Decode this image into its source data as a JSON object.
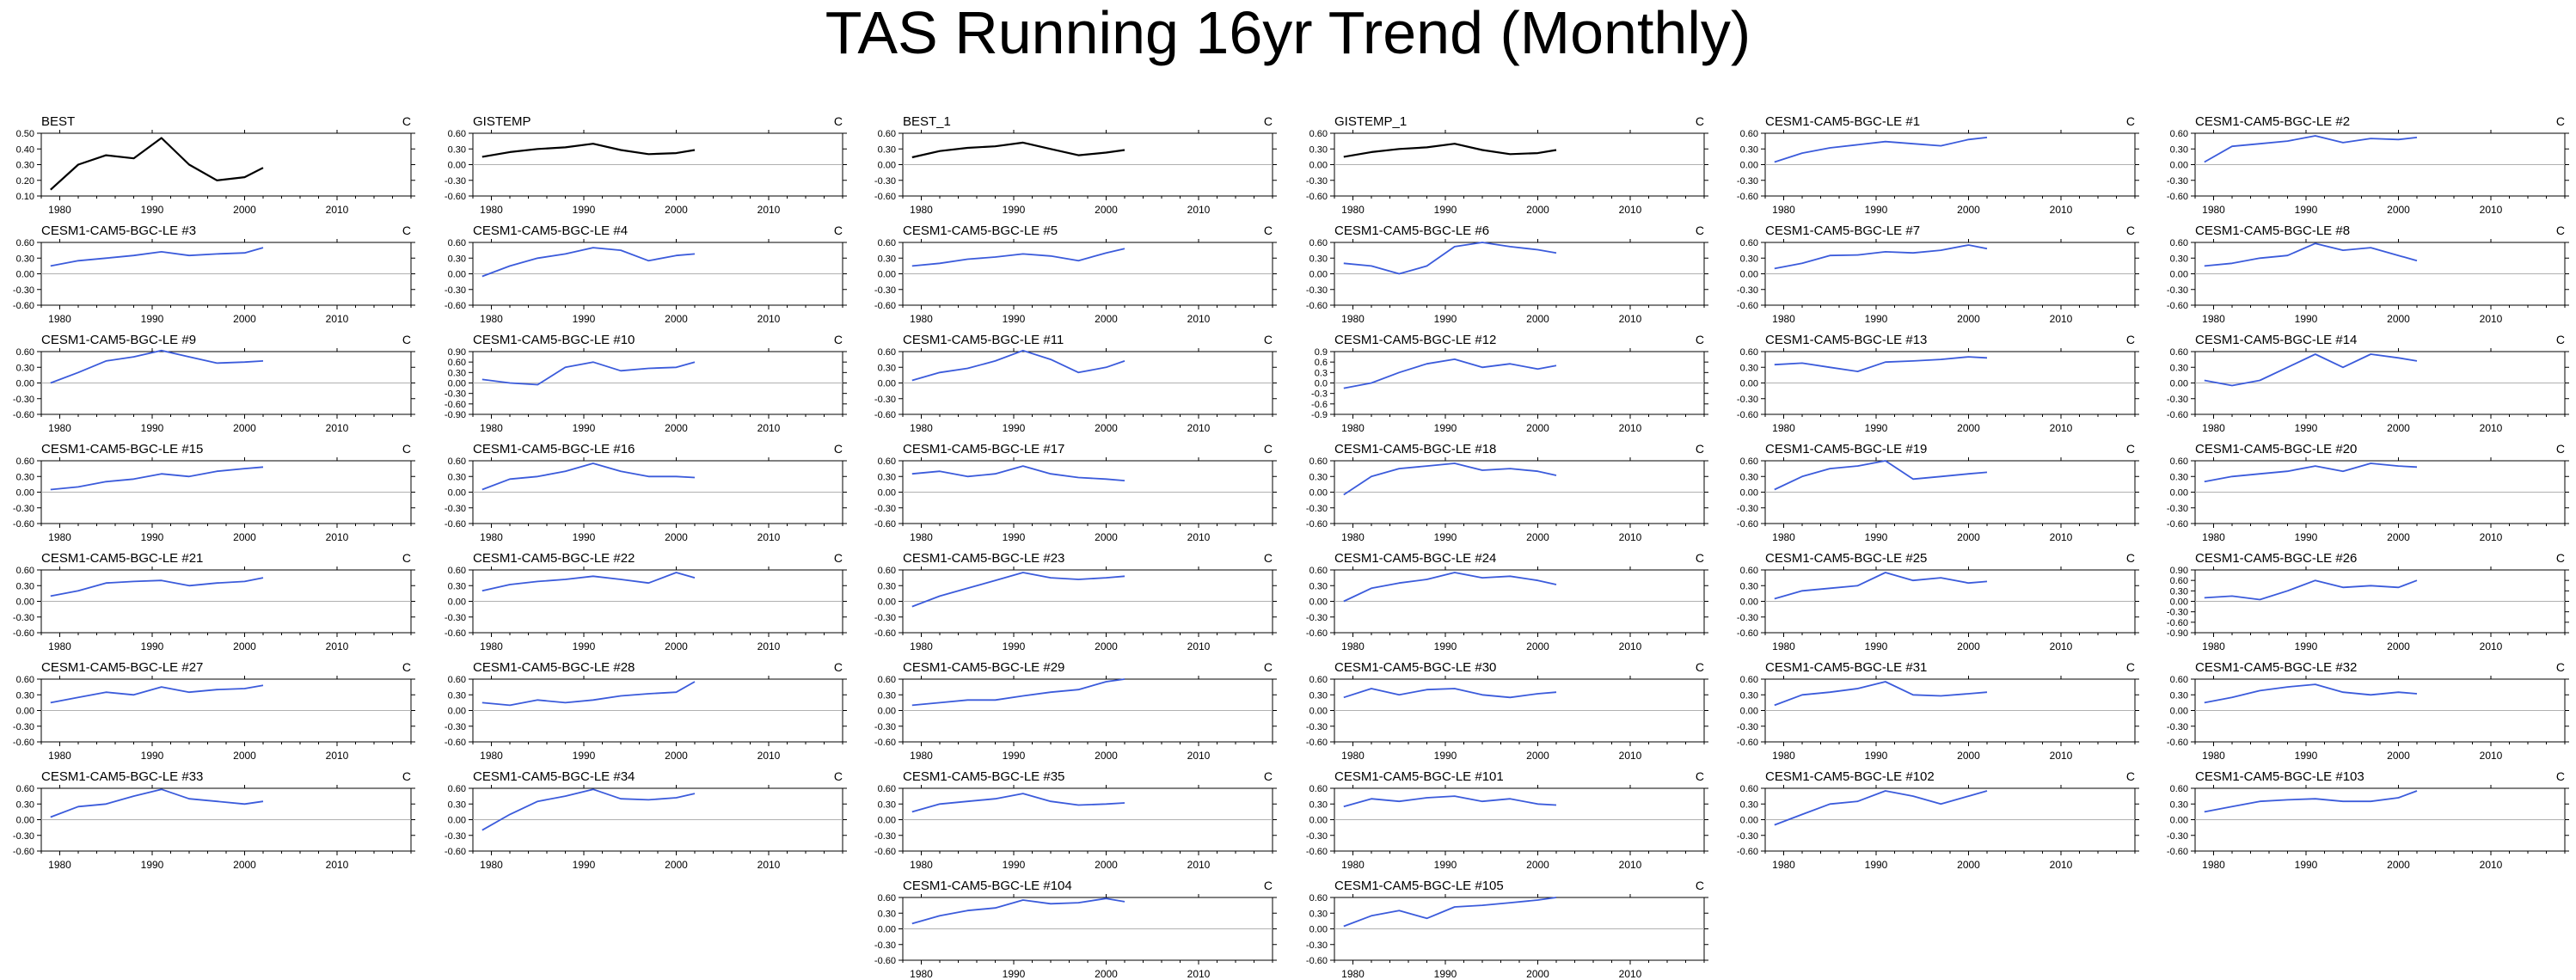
{
  "title": "TAS Running 16yr Trend (Monthly)",
  "colors": {
    "obs": "#000000",
    "model": "#3b5bdb",
    "zero": "#b0b0b0",
    "axis": "#000000"
  },
  "chart_data": {
    "type": "line",
    "units": "C",
    "x_tick_labels": [
      "1980",
      "1990",
      "2000",
      "2010"
    ],
    "xlim": [
      1978,
      2018
    ],
    "x": [
      1979,
      1982,
      1985,
      1988,
      1991,
      1994,
      1997,
      2000,
      2002
    ],
    "panels": [
      {
        "label": "BEST",
        "ylim": [
          0.1,
          0.5
        ],
        "yticks": [
          "0.50",
          "0.40",
          "0.30",
          "0.20",
          "0.10"
        ],
        "y": [
          0.14,
          0.3,
          0.36,
          0.34,
          0.47,
          0.3,
          0.2,
          0.22,
          0.28
        ],
        "obs": true
      },
      {
        "label": "GISTEMP",
        "ylim": [
          -0.6,
          0.6
        ],
        "yticks": [
          "0.60",
          "0.30",
          "0.00",
          "-0.30",
          "-0.60"
        ],
        "y": [
          0.15,
          0.24,
          0.3,
          0.33,
          0.4,
          0.28,
          0.2,
          0.22,
          0.28
        ],
        "obs": true
      },
      {
        "label": "BEST_1",
        "ylim": [
          -0.6,
          0.6
        ],
        "yticks": [
          "0.60",
          "0.30",
          "0.00",
          "-0.30",
          "-0.60"
        ],
        "y": [
          0.14,
          0.26,
          0.32,
          0.35,
          0.42,
          0.3,
          0.18,
          0.23,
          0.28
        ],
        "obs": true
      },
      {
        "label": "GISTEMP_1",
        "ylim": [
          -0.6,
          0.6
        ],
        "yticks": [
          "0.60",
          "0.30",
          "0.00",
          "-0.30",
          "-0.60"
        ],
        "y": [
          0.15,
          0.24,
          0.3,
          0.33,
          0.4,
          0.28,
          0.2,
          0.22,
          0.28
        ],
        "obs": true
      },
      {
        "label": "CESM1-CAM5-BGC-LE #1",
        "ylim": [
          -0.6,
          0.6
        ],
        "yticks": [
          "0.60",
          "0.30",
          "0.00",
          "-0.30",
          "-0.60"
        ],
        "y": [
          0.05,
          0.22,
          0.32,
          0.38,
          0.44,
          0.4,
          0.36,
          0.48,
          0.52
        ]
      },
      {
        "label": "CESM1-CAM5-BGC-LE #2",
        "ylim": [
          -0.6,
          0.6
        ],
        "yticks": [
          "0.60",
          "0.30",
          "0.00",
          "-0.30",
          "-0.60"
        ],
        "y": [
          0.05,
          0.35,
          0.4,
          0.45,
          0.55,
          0.42,
          0.5,
          0.48,
          0.52
        ]
      },
      {
        "label": "CESM1-CAM5-BGC-LE #3",
        "ylim": [
          -0.6,
          0.6
        ],
        "yticks": [
          "0.60",
          "0.30",
          "0.00",
          "-0.30",
          "-0.60"
        ],
        "y": [
          0.15,
          0.25,
          0.3,
          0.35,
          0.42,
          0.35,
          0.38,
          0.4,
          0.5
        ]
      },
      {
        "label": "CESM1-CAM5-BGC-LE #4",
        "ylim": [
          -0.6,
          0.6
        ],
        "yticks": [
          "0.60",
          "0.30",
          "0.00",
          "-0.30",
          "-0.60"
        ],
        "y": [
          -0.05,
          0.15,
          0.3,
          0.38,
          0.5,
          0.45,
          0.25,
          0.35,
          0.38
        ]
      },
      {
        "label": "CESM1-CAM5-BGC-LE #5",
        "ylim": [
          -0.6,
          0.6
        ],
        "yticks": [
          "0.60",
          "0.30",
          "0.00",
          "-0.30",
          "-0.60"
        ],
        "y": [
          0.15,
          0.2,
          0.28,
          0.32,
          0.38,
          0.34,
          0.25,
          0.4,
          0.48
        ]
      },
      {
        "label": "CESM1-CAM5-BGC-LE #6",
        "ylim": [
          -0.6,
          0.6
        ],
        "yticks": [
          "0.60",
          "0.30",
          "0.00",
          "-0.30",
          "-0.60"
        ],
        "y": [
          0.2,
          0.15,
          0.0,
          0.15,
          0.52,
          0.6,
          0.52,
          0.46,
          0.4
        ]
      },
      {
        "label": "CESM1-CAM5-BGC-LE #7",
        "ylim": [
          -0.6,
          0.6
        ],
        "yticks": [
          "0.60",
          "0.30",
          "0.00",
          "-0.30",
          "-0.60"
        ],
        "y": [
          0.1,
          0.2,
          0.35,
          0.36,
          0.42,
          0.4,
          0.45,
          0.55,
          0.48
        ]
      },
      {
        "label": "CESM1-CAM5-BGC-LE #8",
        "ylim": [
          -0.6,
          0.6
        ],
        "yticks": [
          "0.60",
          "0.30",
          "0.00",
          "-0.30",
          "-0.60"
        ],
        "y": [
          0.15,
          0.2,
          0.3,
          0.35,
          0.58,
          0.45,
          0.5,
          0.35,
          0.25
        ]
      },
      {
        "label": "CESM1-CAM5-BGC-LE #9",
        "ylim": [
          -0.6,
          0.6
        ],
        "yticks": [
          "0.60",
          "0.30",
          "0.00",
          "-0.30",
          "-0.60"
        ],
        "y": [
          0.0,
          0.2,
          0.42,
          0.5,
          0.62,
          0.5,
          0.38,
          0.4,
          0.42
        ]
      },
      {
        "label": "CESM1-CAM5-BGC-LE #10",
        "ylim": [
          -0.9,
          0.9
        ],
        "yticks": [
          "0.90",
          "0.60",
          "0.30",
          "0.00",
          "-0.30",
          "-0.60",
          "-0.90"
        ],
        "y": [
          0.1,
          0.0,
          -0.05,
          0.45,
          0.6,
          0.35,
          0.42,
          0.45,
          0.6
        ]
      },
      {
        "label": "CESM1-CAM5-BGC-LE #11",
        "ylim": [
          -0.6,
          0.6
        ],
        "yticks": [
          "0.60",
          "0.30",
          "0.00",
          "-0.30",
          "-0.60"
        ],
        "y": [
          0.05,
          0.2,
          0.28,
          0.42,
          0.62,
          0.45,
          0.2,
          0.3,
          0.42
        ]
      },
      {
        "label": "CESM1-CAM5-BGC-LE #12",
        "ylim": [
          -0.9,
          0.9
        ],
        "yticks": [
          "0.9",
          "0.6",
          "0.3",
          "0.0",
          "-0.3",
          "-0.6",
          "-0.9"
        ],
        "y": [
          -0.15,
          0.0,
          0.3,
          0.55,
          0.68,
          0.45,
          0.55,
          0.4,
          0.5
        ]
      },
      {
        "label": "CESM1-CAM5-BGC-LE #13",
        "ylim": [
          -0.6,
          0.6
        ],
        "yticks": [
          "0.60",
          "0.30",
          "0.00",
          "-0.30",
          "-0.60"
        ],
        "y": [
          0.35,
          0.38,
          0.3,
          0.22,
          0.4,
          0.42,
          0.45,
          0.5,
          0.48
        ]
      },
      {
        "label": "CESM1-CAM5-BGC-LE #14",
        "ylim": [
          -0.6,
          0.6
        ],
        "yticks": [
          "0.60",
          "0.30",
          "0.00",
          "-0.30",
          "-0.60"
        ],
        "y": [
          0.05,
          -0.05,
          0.05,
          0.3,
          0.55,
          0.3,
          0.55,
          0.48,
          0.42
        ]
      },
      {
        "label": "CESM1-CAM5-BGC-LE #15",
        "ylim": [
          -0.6,
          0.6
        ],
        "yticks": [
          "0.60",
          "0.30",
          "0.00",
          "-0.30",
          "-0.60"
        ],
        "y": [
          0.05,
          0.1,
          0.2,
          0.25,
          0.35,
          0.3,
          0.4,
          0.45,
          0.48
        ]
      },
      {
        "label": "CESM1-CAM5-BGC-LE #16",
        "ylim": [
          -0.6,
          0.6
        ],
        "yticks": [
          "0.60",
          "0.30",
          "0.00",
          "-0.30",
          "-0.60"
        ],
        "y": [
          0.05,
          0.25,
          0.3,
          0.4,
          0.55,
          0.4,
          0.3,
          0.3,
          0.28
        ]
      },
      {
        "label": "CESM1-CAM5-BGC-LE #17",
        "ylim": [
          -0.6,
          0.6
        ],
        "yticks": [
          "0.60",
          "0.30",
          "0.00",
          "-0.30",
          "-0.60"
        ],
        "y": [
          0.35,
          0.4,
          0.3,
          0.35,
          0.5,
          0.35,
          0.28,
          0.25,
          0.22
        ]
      },
      {
        "label": "CESM1-CAM5-BGC-LE #18",
        "ylim": [
          -0.6,
          0.6
        ],
        "yticks": [
          "0.60",
          "0.30",
          "0.00",
          "-0.30",
          "-0.60"
        ],
        "y": [
          -0.05,
          0.3,
          0.45,
          0.5,
          0.55,
          0.42,
          0.45,
          0.4,
          0.32
        ]
      },
      {
        "label": "CESM1-CAM5-BGC-LE #19",
        "ylim": [
          -0.6,
          0.6
        ],
        "yticks": [
          "0.60",
          "0.30",
          "0.00",
          "-0.30",
          "-0.60"
        ],
        "y": [
          0.05,
          0.3,
          0.45,
          0.5,
          0.6,
          0.25,
          0.3,
          0.35,
          0.38
        ]
      },
      {
        "label": "CESM1-CAM5-BGC-LE #20",
        "ylim": [
          -0.6,
          0.6
        ],
        "yticks": [
          "0.60",
          "0.30",
          "0.00",
          "-0.30",
          "-0.60"
        ],
        "y": [
          0.2,
          0.3,
          0.35,
          0.4,
          0.5,
          0.4,
          0.55,
          0.5,
          0.48
        ]
      },
      {
        "label": "CESM1-CAM5-BGC-LE #21",
        "ylim": [
          -0.6,
          0.6
        ],
        "yticks": [
          "0.60",
          "0.30",
          "0.00",
          "-0.30",
          "-0.60"
        ],
        "y": [
          0.1,
          0.2,
          0.35,
          0.38,
          0.4,
          0.3,
          0.35,
          0.38,
          0.45
        ]
      },
      {
        "label": "CESM1-CAM5-BGC-LE #22",
        "ylim": [
          -0.6,
          0.6
        ],
        "yticks": [
          "0.60",
          "0.30",
          "0.00",
          "-0.30",
          "-0.60"
        ],
        "y": [
          0.2,
          0.32,
          0.38,
          0.42,
          0.48,
          0.42,
          0.35,
          0.55,
          0.45
        ]
      },
      {
        "label": "CESM1-CAM5-BGC-LE #23",
        "ylim": [
          -0.6,
          0.6
        ],
        "yticks": [
          "0.60",
          "0.30",
          "0.00",
          "-0.30",
          "-0.60"
        ],
        "y": [
          -0.1,
          0.1,
          0.25,
          0.4,
          0.55,
          0.45,
          0.42,
          0.45,
          0.48
        ]
      },
      {
        "label": "CESM1-CAM5-BGC-LE #24",
        "ylim": [
          -0.6,
          0.6
        ],
        "yticks": [
          "0.60",
          "0.30",
          "0.00",
          "-0.30",
          "-0.60"
        ],
        "y": [
          0.0,
          0.25,
          0.35,
          0.42,
          0.55,
          0.45,
          0.48,
          0.4,
          0.32
        ]
      },
      {
        "label": "CESM1-CAM5-BGC-LE #25",
        "ylim": [
          -0.6,
          0.6
        ],
        "yticks": [
          "0.60",
          "0.30",
          "0.00",
          "-0.30",
          "-0.60"
        ],
        "y": [
          0.05,
          0.2,
          0.25,
          0.3,
          0.55,
          0.4,
          0.45,
          0.35,
          0.38
        ]
      },
      {
        "label": "CESM1-CAM5-BGC-LE #26",
        "ylim": [
          -0.9,
          0.9
        ],
        "yticks": [
          "0.90",
          "0.60",
          "0.30",
          "0.00",
          "-0.30",
          "-0.60",
          "-0.90"
        ],
        "y": [
          0.1,
          0.15,
          0.05,
          0.3,
          0.6,
          0.4,
          0.45,
          0.4,
          0.6
        ]
      },
      {
        "label": "CESM1-CAM5-BGC-LE #27",
        "ylim": [
          -0.6,
          0.6
        ],
        "yticks": [
          "0.60",
          "0.30",
          "0.00",
          "-0.30",
          "-0.60"
        ],
        "y": [
          0.15,
          0.25,
          0.35,
          0.3,
          0.45,
          0.35,
          0.4,
          0.42,
          0.48
        ]
      },
      {
        "label": "CESM1-CAM5-BGC-LE #28",
        "ylim": [
          -0.6,
          0.6
        ],
        "yticks": [
          "0.60",
          "0.30",
          "0.00",
          "-0.30",
          "-0.60"
        ],
        "y": [
          0.15,
          0.1,
          0.2,
          0.15,
          0.2,
          0.28,
          0.32,
          0.35,
          0.55
        ]
      },
      {
        "label": "CESM1-CAM5-BGC-LE #29",
        "ylim": [
          -0.6,
          0.6
        ],
        "yticks": [
          "0.60",
          "0.30",
          "0.00",
          "-0.30",
          "-0.60"
        ],
        "y": [
          0.1,
          0.15,
          0.2,
          0.2,
          0.28,
          0.35,
          0.4,
          0.55,
          0.6
        ]
      },
      {
        "label": "CESM1-CAM5-BGC-LE #30",
        "ylim": [
          -0.6,
          0.6
        ],
        "yticks": [
          "0.60",
          "0.30",
          "0.00",
          "-0.30",
          "-0.60"
        ],
        "y": [
          0.25,
          0.42,
          0.3,
          0.4,
          0.42,
          0.3,
          0.25,
          0.32,
          0.35
        ]
      },
      {
        "label": "CESM1-CAM5-BGC-LE #31",
        "ylim": [
          -0.6,
          0.6
        ],
        "yticks": [
          "0.60",
          "0.30",
          "0.00",
          "-0.30",
          "-0.60"
        ],
        "y": [
          0.1,
          0.3,
          0.35,
          0.42,
          0.55,
          0.3,
          0.28,
          0.32,
          0.35
        ]
      },
      {
        "label": "CESM1-CAM5-BGC-LE #32",
        "ylim": [
          -0.6,
          0.6
        ],
        "yticks": [
          "0.60",
          "0.30",
          "0.00",
          "-0.30",
          "-0.60"
        ],
        "y": [
          0.15,
          0.25,
          0.38,
          0.45,
          0.5,
          0.35,
          0.3,
          0.35,
          0.32
        ]
      },
      {
        "label": "CESM1-CAM5-BGC-LE #33",
        "ylim": [
          -0.6,
          0.6
        ],
        "yticks": [
          "0.60",
          "0.30",
          "0.00",
          "-0.30",
          "-0.60"
        ],
        "y": [
          0.05,
          0.25,
          0.3,
          0.45,
          0.58,
          0.4,
          0.35,
          0.3,
          0.35
        ]
      },
      {
        "label": "CESM1-CAM5-BGC-LE #34",
        "ylim": [
          -0.6,
          0.6
        ],
        "yticks": [
          "0.60",
          "0.30",
          "0.00",
          "-0.30",
          "-0.60"
        ],
        "y": [
          -0.2,
          0.1,
          0.35,
          0.45,
          0.58,
          0.4,
          0.38,
          0.42,
          0.5
        ]
      },
      {
        "label": "CESM1-CAM5-BGC-LE #35",
        "ylim": [
          -0.6,
          0.6
        ],
        "yticks": [
          "0.60",
          "0.30",
          "0.00",
          "-0.30",
          "-0.60"
        ],
        "y": [
          0.15,
          0.3,
          0.35,
          0.4,
          0.5,
          0.35,
          0.28,
          0.3,
          0.32
        ]
      },
      {
        "label": "CESM1-CAM5-BGC-LE #101",
        "ylim": [
          -0.6,
          0.6
        ],
        "yticks": [
          "0.60",
          "0.30",
          "0.00",
          "-0.30",
          "-0.60"
        ],
        "y": [
          0.25,
          0.4,
          0.35,
          0.42,
          0.45,
          0.35,
          0.4,
          0.3,
          0.28
        ]
      },
      {
        "label": "CESM1-CAM5-BGC-LE #102",
        "ylim": [
          -0.6,
          0.6
        ],
        "yticks": [
          "0.60",
          "0.30",
          "0.00",
          "-0.30",
          "-0.60"
        ],
        "y": [
          -0.1,
          0.1,
          0.3,
          0.35,
          0.55,
          0.45,
          0.3,
          0.45,
          0.55
        ]
      },
      {
        "label": "CESM1-CAM5-BGC-LE #103",
        "ylim": [
          -0.6,
          0.6
        ],
        "yticks": [
          "0.60",
          "0.30",
          "0.00",
          "-0.30",
          "-0.60"
        ],
        "y": [
          0.15,
          0.25,
          0.35,
          0.38,
          0.4,
          0.35,
          0.35,
          0.42,
          0.55
        ]
      },
      {
        "label": "CESM1-CAM5-BGC-LE #104",
        "ylim": [
          -0.6,
          0.6
        ],
        "yticks": [
          "0.60",
          "0.30",
          "0.00",
          "-0.30",
          "-0.60"
        ],
        "y": [
          0.1,
          0.25,
          0.35,
          0.4,
          0.55,
          0.48,
          0.5,
          0.58,
          0.52
        ]
      },
      {
        "label": "CESM1-CAM5-BGC-LE #105",
        "ylim": [
          -0.6,
          0.6
        ],
        "yticks": [
          "0.60",
          "0.30",
          "0.00",
          "-0.30",
          "-0.60"
        ],
        "y": [
          0.05,
          0.25,
          0.35,
          0.2,
          0.42,
          0.45,
          0.5,
          0.55,
          0.6
        ]
      }
    ]
  }
}
